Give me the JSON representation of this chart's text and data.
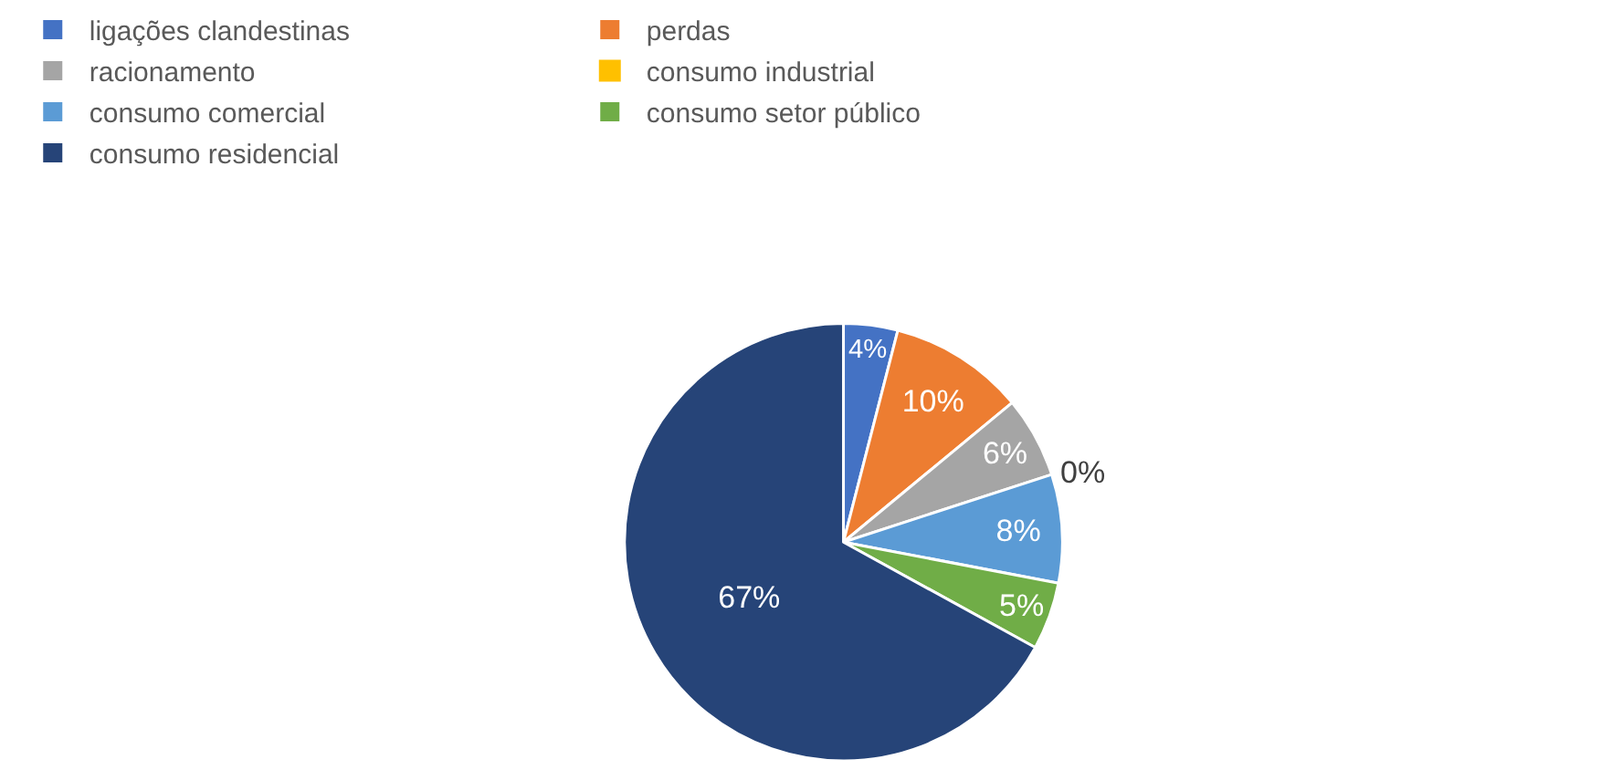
{
  "chart_data": {
    "type": "pie",
    "categories": [
      "ligações clandestinas",
      "perdas",
      "racionamento",
      "consumo industrial",
      "consumo comercial",
      "consumo setor público",
      "consumo residencial"
    ],
    "values": [
      4,
      10,
      6,
      0,
      8,
      5,
      67
    ],
    "value_labels": [
      "4%",
      "10%",
      "6%",
      "0%",
      "8%",
      "5%",
      "67%"
    ],
    "colors": [
      "#4472c4",
      "#ed7d31",
      "#a5a5a5",
      "#ffc000",
      "#5b9bd5",
      "#70ad47",
      "#264478"
    ],
    "legend": "top"
  }
}
